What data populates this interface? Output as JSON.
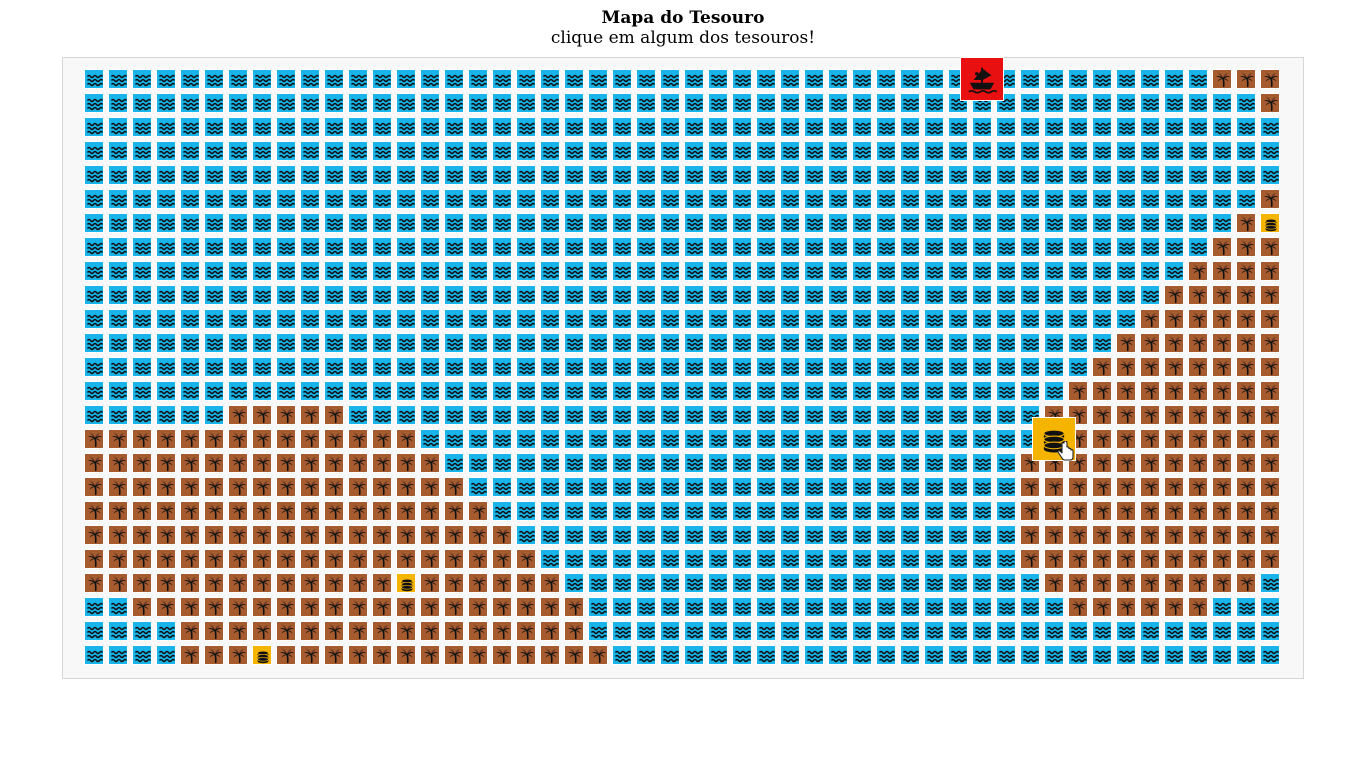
{
  "header": {
    "title": "Mapa do Tesouro",
    "subtitle": "clique em algum dos tesouros!"
  },
  "colors": {
    "water": "#18b4ea",
    "land": "#a65b2e",
    "treasure": "#f4b400",
    "ship": "#e81010",
    "icon": "#111111",
    "tile_border": "#ffffff"
  },
  "icons": {
    "water": "waves-icon",
    "land": "palm-tree-icon",
    "treasure": "coin-stack-icon",
    "ship": "pirate-ship-icon"
  },
  "legend": {
    "W": "water",
    "L": "land",
    "T": "treasure",
    "S": "ship"
  },
  "grid": {
    "cols": 50,
    "rows": 25,
    "map": [
      "WWWWWWWWWWWWWWWWWWWWWWWWWWWWWWWWWWWWWSWWWWWWWWWLLL",
      "WWWWWWWWWWWWWWWWWWWWWWWWWWWWWWWWWWWWWWWWWWWWWWWWWL",
      "WWWWWWWWWWWWWWWWWWWWWWWWWWWWWWWWWWWWWWWWWWWWWWWWWW",
      "WWWWWWWWWWWWWWWWWWWWWWWWWWWWWWWWWWWWWWWWWWWWWWWWWW",
      "WWWWWWWWWWWWWWWWWWWWWWWWWWWWWWWWWWWWWWWWWWWWWWWWWW",
      "WWWWWWWWWWWWWWWWWWWWWWWWWWWWWWWWWWWWWWWWWWWWWWWWWL",
      "WWWWWWWWWWWWWWWWWWWWWWWWWWWWWWWWWWWWWWWWWWWWWWWWLT",
      "WWWWWWWWWWWWWWWWWWWWWWWWWWWWWWWWWWWWWWWWWWWWWWWLLL",
      "WWWWWWWWWWWWWWWWWWWWWWWWWWWWWWWWWWWWWWWWWWWWWWLLLL",
      "WWWWWWWWWWWWWWWWWWWWWWWWWWWWWWWWWWWWWWWWWWWWWLLLLL",
      "WWWWWWWWWWWWWWWWWWWWWWWWWWWWWWWWWWWWWWWWWWWWLLLLLL",
      "WWWWWWWWWWWWWWWWWWWWWWWWWWWWWWWWWWWWWWWWWWWLLLLLLL",
      "WWWWWWWWWWWWWWWWWWWWWWWWWWWWWWWWWWWWWWWWWWLLLLLLLL",
      "WWWWWWWWWWWWWWWWWWWWWWWWWWWWWWWWWWWWWWWWWLLLLLLLLL",
      "WWWWWWLLLLLWWWWWWWWWWWWWWWWWWWWWWWWWWWWWLLLLLLLLLL",
      "LLLLLLLLLLLLLLWWWWWWWWWWWWWWWWWWWWWWWWWWTLLLLLLLLL",
      "LLLLLLLLLLLLLLLWWWWWWWWWWWWWWWWWWWWWWWWLLLLLLLLLLL",
      "LLLLLLLLLLLLLLLLWWWWWWWWWWWWWWWWWWWWWWWLLLLLLLLLLL",
      "LLLLLLLLLLLLLLLLLWWWWWWWWWWWWWWWWWWWWWWLLLLLLLLLLL",
      "LLLLLLLLLLLLLLLLLLWWWWWWWWWWWWWWWWWWWWWLLLLLLLLLLL",
      "LLLLLLLLLLLLLLLLLLLWWWWWWWWWWWWWWWWWWWWLLLLLLLLLLL",
      "LLLLLLLLLLLLLTLLLLLLWWWWWWWWWWWWWWWWWWWWLLLLLLLLLW",
      "WWLLLLLLLLLLLLLLLLLLLWWWWWWWWWWWWWWWWWWWWLLLLLLWWW",
      "WWWWLLLLLLLLLLLLLLLLLWWWWWWWWWWWWWWWWWWWWWWWWWWWWW",
      "WWWWLLLTLLLLLLLLLLLLLLWWWWWWWWWWWWWWWWWWWWWWWWWWWW"
    ]
  }
}
